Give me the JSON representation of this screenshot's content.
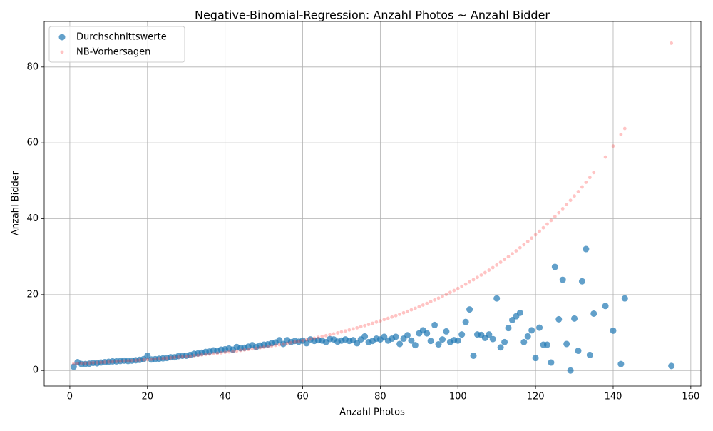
{
  "chart_data": {
    "type": "scatter",
    "title": "Negative-Binomial-Regression: Anzahl Photos ~ Anzahl Bidder",
    "x_label": "Anzahl Photos",
    "y_label": "Anzahl Bidder",
    "xlim": [
      -6.6,
      162.6
    ],
    "ylim": [
      -4.1,
      92.0
    ],
    "xticks": [
      0,
      20,
      40,
      60,
      80,
      100,
      120,
      140,
      160
    ],
    "yticks": [
      0,
      20,
      40,
      60,
      80
    ],
    "grid": true,
    "legend": "upper-left",
    "x": [
      1,
      2,
      3,
      4,
      5,
      6,
      7,
      8,
      9,
      10,
      11,
      12,
      13,
      14,
      15,
      16,
      17,
      18,
      19,
      20,
      21,
      22,
      23,
      24,
      25,
      26,
      27,
      28,
      29,
      30,
      31,
      32,
      33,
      34,
      35,
      36,
      37,
      38,
      39,
      40,
      41,
      42,
      43,
      44,
      45,
      46,
      47,
      48,
      49,
      50,
      51,
      52,
      53,
      54,
      55,
      56,
      57,
      58,
      59,
      60,
      61,
      62,
      63,
      64,
      65,
      66,
      67,
      68,
      69,
      70,
      71,
      72,
      73,
      74,
      75,
      76,
      77,
      78,
      79,
      80,
      81,
      82,
      83,
      84,
      85,
      86,
      87,
      88,
      89,
      90,
      91,
      92,
      93,
      94,
      95,
      96,
      97,
      98,
      99,
      100,
      101,
      102,
      103,
      104,
      105,
      106,
      107,
      108,
      109,
      110,
      111,
      112,
      113,
      114,
      115,
      116,
      117,
      118,
      119,
      120,
      121,
      122,
      123,
      124,
      125,
      126,
      127,
      128,
      129,
      130,
      131,
      132,
      133,
      134,
      135,
      138,
      140,
      142,
      143,
      155
    ],
    "series": [
      {
        "name": "Durchschnittswerte",
        "color": "#1f77b4",
        "values": [
          1.0,
          2.2,
          1.7,
          1.7,
          1.8,
          2.0,
          1.9,
          2.1,
          2.2,
          2.3,
          2.4,
          2.4,
          2.5,
          2.6,
          2.5,
          2.6,
          2.7,
          2.8,
          3.0,
          3.9,
          2.9,
          3.0,
          3.1,
          3.2,
          3.3,
          3.5,
          3.5,
          3.8,
          3.9,
          3.9,
          4.1,
          4.4,
          4.5,
          4.7,
          4.9,
          5.0,
          5.3,
          5.2,
          5.5,
          5.6,
          5.8,
          5.5,
          6.2,
          5.9,
          6.0,
          6.3,
          6.7,
          6.2,
          6.6,
          6.8,
          6.9,
          7.2,
          7.4,
          8.0,
          7.0,
          8.0,
          7.5,
          7.8,
          7.6,
          7.9,
          7.2,
          8.2,
          7.8,
          8.0,
          7.9,
          7.5,
          8.3,
          8.2,
          7.6,
          7.9,
          8.2,
          7.8,
          8.0,
          7.2,
          8.2,
          9.0,
          7.5,
          7.8,
          8.4,
          8.2,
          8.9,
          7.9,
          8.4,
          8.9,
          7.0,
          8.4,
          9.3,
          7.9,
          6.7,
          9.8,
          10.6,
          9.8,
          7.8,
          12.0,
          6.9,
          8.2,
          10.3,
          7.5,
          8.0,
          7.9,
          9.5,
          12.8,
          16.1,
          3.9,
          9.5,
          9.4,
          8.6,
          9.5,
          8.3,
          19.0,
          6.1,
          7.5,
          11.2,
          13.3,
          14.3,
          15.2,
          7.5,
          9.0,
          10.6,
          3.3,
          11.3,
          6.8,
          6.8,
          2.1,
          27.3,
          13.5,
          23.9,
          7.0,
          0.0,
          13.7,
          5.2,
          23.5,
          32.0,
          4.1,
          15.0,
          17.0,
          10.5,
          1.7,
          19.0,
          1.2
        ]
      },
      {
        "name": "NB-Vorhersagen",
        "color": "#ff3b3b",
        "values": [
          1.8,
          1.85,
          1.89,
          1.94,
          1.99,
          2.04,
          2.09,
          2.14,
          2.2,
          2.25,
          2.31,
          2.37,
          2.43,
          2.49,
          2.55,
          2.62,
          2.69,
          2.75,
          2.82,
          2.9,
          2.97,
          3.05,
          3.12,
          3.2,
          3.28,
          3.37,
          3.45,
          3.54,
          3.63,
          3.72,
          3.82,
          3.91,
          4.01,
          4.12,
          4.22,
          4.33,
          4.44,
          4.55,
          4.67,
          4.79,
          4.91,
          5.03,
          5.16,
          5.29,
          5.43,
          5.56,
          5.71,
          5.85,
          6.0,
          6.15,
          6.31,
          6.47,
          6.63,
          6.8,
          6.98,
          7.15,
          7.34,
          7.52,
          7.71,
          7.91,
          8.11,
          8.32,
          8.53,
          8.75,
          8.97,
          9.2,
          9.43,
          9.67,
          9.92,
          10.17,
          10.43,
          10.7,
          10.97,
          11.25,
          11.54,
          11.83,
          12.13,
          12.44,
          12.76,
          13.08,
          13.42,
          13.76,
          14.11,
          14.47,
          14.83,
          15.21,
          15.6,
          16.0,
          16.4,
          16.82,
          17.25,
          17.69,
          18.14,
          18.6,
          19.07,
          19.56,
          20.06,
          20.57,
          21.09,
          21.63,
          22.18,
          22.74,
          23.32,
          23.92,
          24.53,
          25.15,
          25.79,
          26.45,
          27.12,
          27.81,
          28.52,
          29.25,
          29.99,
          30.76,
          31.54,
          32.34,
          33.17,
          34.01,
          34.88,
          35.77,
          36.68,
          37.61,
          38.57,
          39.55,
          40.56,
          41.59,
          42.65,
          43.74,
          44.85,
          45.99,
          47.16,
          48.37,
          49.6,
          50.86,
          52.16,
          56.25,
          59.15,
          62.2,
          63.78,
          86.28
        ]
      }
    ]
  }
}
